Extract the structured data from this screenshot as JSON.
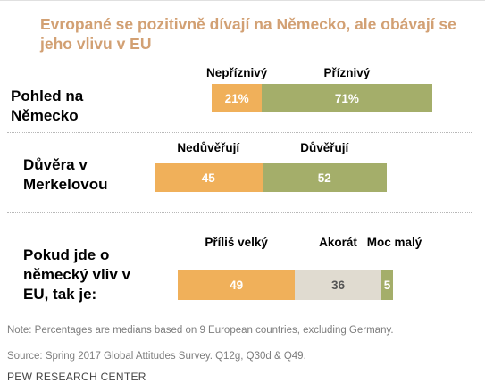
{
  "title": "Evropané se pozitivně dívají na Německo, ale obávají se jeho vlivu v EU",
  "chart_data": [
    {
      "type": "bar",
      "orientation": "horizontal",
      "stacked": true,
      "category": "Pohled na Německo",
      "series": [
        {
          "name": "Nepříznivý",
          "value": 21,
          "label": "21%",
          "color": "#f0b05a"
        },
        {
          "name": "Příznivý",
          "value": 71,
          "label": "71%",
          "color": "#a4ae6a"
        }
      ]
    },
    {
      "type": "bar",
      "orientation": "horizontal",
      "stacked": true,
      "category": "Důvěra v Merkelovou",
      "series": [
        {
          "name": "Nedůvěřují",
          "value": 45,
          "label": "45",
          "color": "#f0b05a"
        },
        {
          "name": "Důvěřují",
          "value": 52,
          "label": "52",
          "color": "#a4ae6a"
        }
      ]
    },
    {
      "type": "bar",
      "orientation": "horizontal",
      "stacked": true,
      "category": "Pokud jde o německý vliv v EU, tak je:",
      "series": [
        {
          "name": "Příliš velký",
          "value": 49,
          "label": "49",
          "color": "#f0b05a"
        },
        {
          "name": "Akorát",
          "value": 36,
          "label": "36",
          "color": "#e0dbd0"
        },
        {
          "name": "Moc malý",
          "value": 5,
          "label": "5",
          "color": "#a4ae6a"
        }
      ]
    }
  ],
  "note": "Note: Percentages are medians based on 9 European countries, excluding Germany.",
  "source": "Source: Spring 2017 Global Attitudes Survey. Q12g, Q30d & Q49.",
  "credit": "PEW RESEARCH CENTER"
}
